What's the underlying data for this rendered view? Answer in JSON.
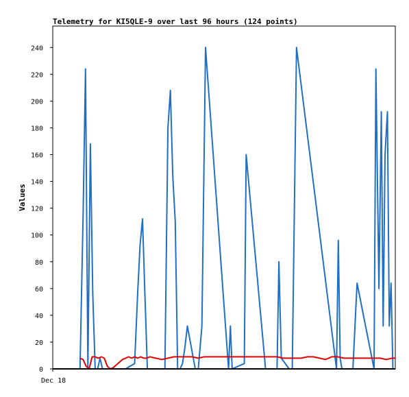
{
  "chart_data": {
    "type": "line",
    "title": "Telemetry for KI5QLE-9 over last 96 hours (124 points)",
    "xlabel": "",
    "ylabel": "Values",
    "x_tick_labels": [
      "Dec 18"
    ],
    "y_ticks": [
      0,
      20,
      40,
      60,
      80,
      100,
      120,
      140,
      160,
      180,
      200,
      220,
      240
    ],
    "ylim": [
      0,
      256
    ],
    "grid": false,
    "series": [
      {
        "color": "#1f6fc4",
        "x": [
          0,
          4.5,
          5.0,
          5.4,
          5.8,
          6.2,
          6.6,
          7.0,
          7.4,
          7.8,
          8.2,
          8.6,
          12.0,
          13.5,
          14.0,
          14.4,
          14.8,
          15.2,
          15.6,
          16.0,
          16.4,
          16.8,
          17.2,
          18.5,
          19.0,
          19.4,
          19.8,
          20.2,
          20.6,
          21.0,
          21.4,
          21.8,
          22.2,
          23.5,
          24.0,
          24.6,
          25.2,
          29.0,
          29.3,
          29.6,
          31.6,
          31.9,
          35.1,
          35.5,
          36.0,
          36.2,
          36.5,
          37.0,
          37.3,
          37.7,
          39.0,
          39.5,
          40.2,
          46.8,
          47.1,
          47.4,
          47.7,
          48.0,
          48.5,
          49.5,
          50.2,
          53.0,
          53.3,
          53.8,
          54.2,
          54.5,
          54.8,
          55.2,
          55.5,
          55.8,
          56.1,
          56.4
        ],
        "y": [
          0,
          0,
          112,
          224,
          0,
          168,
          56,
          0,
          0,
          8,
          0,
          0,
          0,
          4,
          56,
          92,
          112,
          56,
          0,
          0,
          0,
          0,
          0,
          0,
          180,
          208,
          144,
          110,
          0,
          0,
          4,
          16,
          32,
          0,
          0,
          32,
          240,
          0,
          32,
          0,
          4,
          160,
          0,
          0,
          0,
          0,
          0,
          0,
          80,
          8,
          0,
          0,
          240,
          0,
          96,
          8,
          0,
          0,
          0,
          0,
          64,
          0,
          224,
          60,
          192,
          32,
          160,
          192,
          32,
          64,
          0,
          0
        ]
      },
      {
        "color": "#e00000",
        "x": [
          4.5,
          5.0,
          5.5,
          6.0,
          6.5,
          7.0,
          7.5,
          8.0,
          8.5,
          9.0,
          9.5,
          10.0,
          10.5,
          11.0,
          11.5,
          12.0,
          12.5,
          13.0,
          13.5,
          14.0,
          14.5,
          15.0,
          15.5,
          16.0,
          17.0,
          18.0,
          19.0,
          20.0,
          21.0,
          22.0,
          23.0,
          24.0,
          25.0,
          26.0,
          27.0,
          28.0,
          29.0,
          30.0,
          31.0,
          32.0,
          33.0,
          34.0,
          35.0,
          36.0,
          37.0,
          38.0,
          39.0,
          40.0,
          41.0,
          42.0,
          43.0,
          44.0,
          45.0,
          46.0,
          47.0,
          48.0,
          49.0,
          50.0,
          51.0,
          52.0,
          53.0,
          54.0,
          55.0,
          56.0,
          56.5
        ],
        "y": [
          8,
          7,
          2,
          0,
          9,
          9,
          8,
          9,
          8,
          2,
          0,
          1,
          3,
          5,
          7,
          8,
          9,
          8,
          9,
          8,
          9,
          8,
          8,
          9,
          8,
          7,
          8,
          9,
          9,
          9,
          9,
          8,
          9,
          9,
          9,
          9,
          9,
          9,
          9,
          9,
          9,
          9,
          9,
          9,
          9,
          8,
          8,
          8,
          8,
          9,
          9,
          8,
          7,
          9,
          9,
          8,
          8,
          8,
          8,
          8,
          8,
          8,
          7,
          8,
          8
        ]
      },
      {
        "color": "#000000",
        "x": [
          0,
          56.5
        ],
        "y": [
          0,
          0
        ]
      }
    ]
  }
}
